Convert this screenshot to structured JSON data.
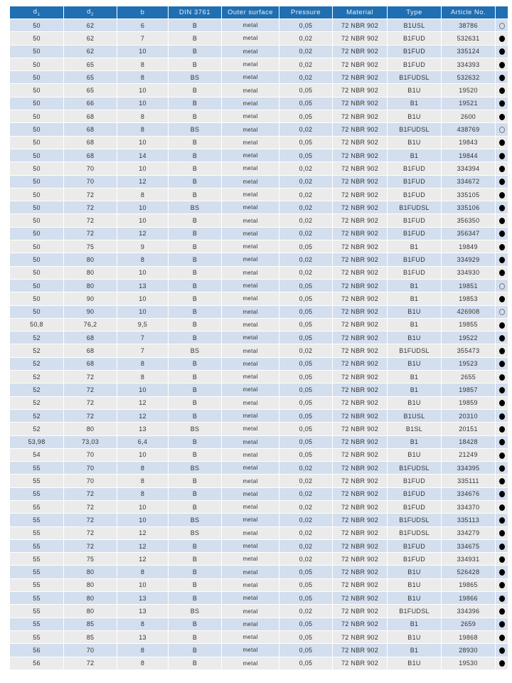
{
  "header": {
    "d1": "d",
    "d1_sub": "1",
    "d2": "d",
    "d2_sub": "2",
    "b": "b",
    "din": "DIN 3761",
    "outer_surface": "Outer surface",
    "pressure": "Pressure",
    "material": "Material",
    "type": "Type",
    "article_no": "Article No.",
    "availability": ""
  },
  "colors": {
    "header_bg": "#1f6fb2",
    "row_odd": "#d3deee",
    "row_even": "#ebebeb"
  },
  "rows": [
    [
      "50",
      "62",
      "6",
      "B",
      "metal",
      "0,05",
      "72 NBR 902",
      "B1USL",
      "38786",
      "open"
    ],
    [
      "50",
      "62",
      "7",
      "B",
      "metal",
      "0,02",
      "72 NBR 902",
      "B1FUD",
      "532631",
      "filled"
    ],
    [
      "50",
      "62",
      "10",
      "B",
      "metal",
      "0,02",
      "72 NBR 902",
      "B1FUD",
      "335124",
      "filled"
    ],
    [
      "50",
      "65",
      "8",
      "B",
      "metal",
      "0,02",
      "72 NBR 902",
      "B1FUD",
      "334393",
      "filled"
    ],
    [
      "50",
      "65",
      "8",
      "BS",
      "metal",
      "0,02",
      "72 NBR 902",
      "B1FUDSL",
      "532632",
      "filled"
    ],
    [
      "50",
      "65",
      "10",
      "B",
      "metal",
      "0,05",
      "72 NBR 902",
      "B1U",
      "19520",
      "filled"
    ],
    [
      "50",
      "66",
      "10",
      "B",
      "metal",
      "0,05",
      "72 NBR 902",
      "B1",
      "19521",
      "filled"
    ],
    [
      "50",
      "68",
      "8",
      "B",
      "metal",
      "0,05",
      "72 NBR 902",
      "B1U",
      "2600",
      "filled"
    ],
    [
      "50",
      "68",
      "8",
      "BS",
      "metal",
      "0,02",
      "72 NBR 902",
      "B1FUDSL",
      "438769",
      "open"
    ],
    [
      "50",
      "68",
      "10",
      "B",
      "metal",
      "0,05",
      "72 NBR 902",
      "B1U",
      "19843",
      "filled"
    ],
    [
      "50",
      "68",
      "14",
      "B",
      "metal",
      "0,05",
      "72 NBR 902",
      "B1",
      "19844",
      "filled"
    ],
    [
      "50",
      "70",
      "10",
      "B",
      "metal",
      "0,02",
      "72 NBR 902",
      "B1FUD",
      "334394",
      "filled"
    ],
    [
      "50",
      "70",
      "12",
      "B",
      "metal",
      "0,02",
      "72 NBR 902",
      "B1FUD",
      "334672",
      "filled"
    ],
    [
      "50",
      "72",
      "8",
      "B",
      "metal",
      "0,02",
      "72 NBR 902",
      "B1FUD",
      "335105",
      "filled"
    ],
    [
      "50",
      "72",
      "10",
      "BS",
      "metal",
      "0,02",
      "72 NBR 902",
      "B1FUDSL",
      "335106",
      "filled"
    ],
    [
      "50",
      "72",
      "10",
      "B",
      "metal",
      "0,02",
      "72 NBR 902",
      "B1FUD",
      "356350",
      "filled"
    ],
    [
      "50",
      "72",
      "12",
      "B",
      "metal",
      "0,02",
      "72 NBR 902",
      "B1FUD",
      "356347",
      "filled"
    ],
    [
      "50",
      "75",
      "9",
      "B",
      "metal",
      "0,05",
      "72 NBR 902",
      "B1",
      "19849",
      "filled"
    ],
    [
      "50",
      "80",
      "8",
      "B",
      "metal",
      "0,02",
      "72 NBR 902",
      "B1FUD",
      "334929",
      "filled"
    ],
    [
      "50",
      "80",
      "10",
      "B",
      "metal",
      "0,02",
      "72 NBR 902",
      "B1FUD",
      "334930",
      "filled"
    ],
    [
      "50",
      "80",
      "13",
      "B",
      "metal",
      "0,05",
      "72 NBR 902",
      "B1",
      "19851",
      "open"
    ],
    [
      "50",
      "90",
      "10",
      "B",
      "metal",
      "0,05",
      "72 NBR 902",
      "B1",
      "19853",
      "filled"
    ],
    [
      "50",
      "90",
      "10",
      "B",
      "metal",
      "0,05",
      "72 NBR 902",
      "B1U",
      "426908",
      "open"
    ],
    [
      "50,8",
      "76,2",
      "9,5",
      "B",
      "metal",
      "0,05",
      "72 NBR 902",
      "B1",
      "19855",
      "filled"
    ],
    [
      "52",
      "68",
      "7",
      "B",
      "metal",
      "0,05",
      "72 NBR 902",
      "B1U",
      "19522",
      "filled"
    ],
    [
      "52",
      "68",
      "7",
      "BS",
      "metal",
      "0,02",
      "72 NBR 902",
      "B1FUDSL",
      "355473",
      "filled"
    ],
    [
      "52",
      "68",
      "8",
      "B",
      "metal",
      "0,05",
      "72 NBR 902",
      "B1U",
      "19523",
      "filled"
    ],
    [
      "52",
      "72",
      "8",
      "B",
      "metal",
      "0,05",
      "72 NBR 902",
      "B1",
      "2655",
      "filled"
    ],
    [
      "52",
      "72",
      "10",
      "B",
      "metal",
      "0,05",
      "72 NBR 902",
      "B1",
      "19857",
      "filled"
    ],
    [
      "52",
      "72",
      "12",
      "B",
      "metal",
      "0,05",
      "72 NBR 902",
      "B1U",
      "19859",
      "filled"
    ],
    [
      "52",
      "72",
      "12",
      "B",
      "metal",
      "0,05",
      "72 NBR 902",
      "B1USL",
      "20310",
      "filled"
    ],
    [
      "52",
      "80",
      "13",
      "BS",
      "metal",
      "0,05",
      "72 NBR 902",
      "B1SL",
      "20151",
      "filled"
    ],
    [
      "53,98",
      "73,03",
      "6,4",
      "B",
      "metal",
      "0,05",
      "72 NBR 902",
      "B1",
      "18428",
      "filled"
    ],
    [
      "54",
      "70",
      "10",
      "B",
      "metal",
      "0,05",
      "72 NBR 902",
      "B1U",
      "21249",
      "filled"
    ],
    [
      "55",
      "70",
      "8",
      "BS",
      "metal",
      "0,02",
      "72 NBR 902",
      "B1FUDSL",
      "334395",
      "filled"
    ],
    [
      "55",
      "70",
      "8",
      "B",
      "metal",
      "0,02",
      "72 NBR 902",
      "B1FUD",
      "335111",
      "filled"
    ],
    [
      "55",
      "72",
      "8",
      "B",
      "metal",
      "0,02",
      "72 NBR 902",
      "B1FUD",
      "334676",
      "filled"
    ],
    [
      "55",
      "72",
      "10",
      "B",
      "metal",
      "0,02",
      "72 NBR 902",
      "B1FUD",
      "334370",
      "filled"
    ],
    [
      "55",
      "72",
      "10",
      "BS",
      "metal",
      "0,02",
      "72 NBR 902",
      "B1FUDSL",
      "335113",
      "filled"
    ],
    [
      "55",
      "72",
      "12",
      "BS",
      "metal",
      "0,02",
      "72 NBR 902",
      "B1FUDSL",
      "334279",
      "filled"
    ],
    [
      "55",
      "72",
      "12",
      "B",
      "metal",
      "0,02",
      "72 NBR 902",
      "B1FUD",
      "334675",
      "filled"
    ],
    [
      "55",
      "75",
      "12",
      "B",
      "metal",
      "0,02",
      "72 NBR 902",
      "B1FUD",
      "334931",
      "filled"
    ],
    [
      "55",
      "80",
      "8",
      "B",
      "metal",
      "0,05",
      "72 NBR 902",
      "B1U",
      "526428",
      "filled"
    ],
    [
      "55",
      "80",
      "10",
      "B",
      "metal",
      "0,05",
      "72 NBR 902",
      "B1U",
      "19865",
      "filled"
    ],
    [
      "55",
      "80",
      "13",
      "B",
      "metal",
      "0,05",
      "72 NBR 902",
      "B1U",
      "19866",
      "filled"
    ],
    [
      "55",
      "80",
      "13",
      "BS",
      "metal",
      "0,02",
      "72 NBR 902",
      "B1FUDSL",
      "334396",
      "filled"
    ],
    [
      "55",
      "85",
      "8",
      "B",
      "metal",
      "0,05",
      "72 NBR 902",
      "B1",
      "2659",
      "filled"
    ],
    [
      "55",
      "85",
      "13",
      "B",
      "metal",
      "0,05",
      "72 NBR 902",
      "B1U",
      "19868",
      "filled"
    ],
    [
      "56",
      "70",
      "8",
      "B",
      "metal",
      "0,05",
      "72 NBR 902",
      "B1",
      "28930",
      "filled"
    ],
    [
      "56",
      "72",
      "8",
      "B",
      "metal",
      "0,05",
      "72 NBR 902",
      "B1U",
      "19530",
      "filled"
    ]
  ]
}
